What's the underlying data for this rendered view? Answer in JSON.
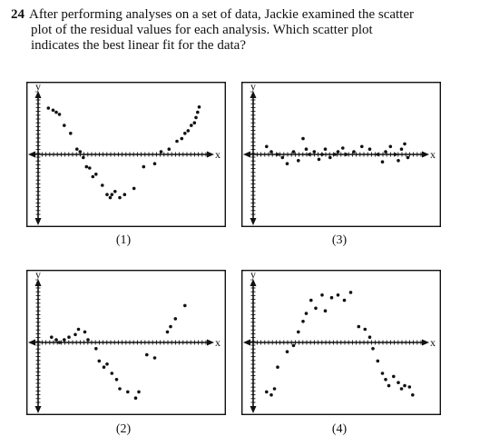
{
  "question": {
    "number": "24",
    "lines": [
      "After performing analyses on a set of data, Jackie examined the scatter",
      "plot of the residual values for each analysis. Which scatter plot",
      "indicates the best linear fit for the data?"
    ]
  },
  "axis_labels": {
    "x": "x",
    "y": "y"
  },
  "chart_data": [
    {
      "type": "scatter",
      "caption": "(1)",
      "x": [
        0.03,
        0.06,
        0.08,
        0.1,
        0.13,
        0.17,
        0.21,
        0.23,
        0.25,
        0.27,
        0.29,
        0.31,
        0.33,
        0.37,
        0.4,
        0.42,
        0.43,
        0.45,
        0.48,
        0.51,
        0.57,
        0.63,
        0.7,
        0.74,
        0.79,
        0.84,
        0.87,
        0.89,
        0.91,
        0.93,
        0.95,
        0.96,
        0.97,
        0.98
      ],
      "y": [
        0.88,
        0.84,
        0.8,
        0.76,
        0.55,
        0.4,
        0.1,
        0.05,
        -0.05,
        -0.2,
        -0.22,
        -0.36,
        -0.32,
        -0.5,
        -0.65,
        -0.7,
        -0.65,
        -0.6,
        -0.7,
        -0.65,
        -0.55,
        -0.2,
        -0.15,
        0.05,
        0.1,
        0.25,
        0.3,
        0.4,
        0.45,
        0.55,
        0.6,
        0.7,
        0.8,
        0.9
      ],
      "xlim": [
        0,
        1
      ],
      "ylim": [
        -1,
        1
      ]
    },
    {
      "type": "scatter",
      "caption": "(3)",
      "x": [
        0.05,
        0.08,
        0.12,
        0.15,
        0.18,
        0.22,
        0.25,
        0.28,
        0.3,
        0.32,
        0.35,
        0.38,
        0.4,
        0.42,
        0.45,
        0.48,
        0.5,
        0.53,
        0.55,
        0.6,
        0.65,
        0.7,
        0.75,
        0.78,
        0.8,
        0.83,
        0.86,
        0.88,
        0.9,
        0.92,
        0.94
      ],
      "y": [
        0.15,
        0.05,
        0.0,
        -0.05,
        -0.15,
        0.05,
        -0.1,
        0.3,
        0.1,
        0.0,
        0.05,
        -0.08,
        0.0,
        0.1,
        -0.05,
        0.0,
        0.05,
        0.12,
        0.0,
        0.05,
        0.15,
        0.1,
        0.0,
        -0.12,
        0.05,
        0.15,
        0.0,
        -0.1,
        0.1,
        0.2,
        -0.05
      ],
      "xlim": [
        0,
        1
      ],
      "ylim": [
        -1,
        1
      ]
    },
    {
      "type": "scatter",
      "caption": "(2)",
      "x": [
        0.05,
        0.08,
        0.1,
        0.13,
        0.16,
        0.2,
        0.22,
        0.26,
        0.28,
        0.33,
        0.35,
        0.38,
        0.4,
        0.43,
        0.46,
        0.48,
        0.53,
        0.58,
        0.6,
        0.65,
        0.7,
        0.78,
        0.8,
        0.83,
        0.89
      ],
      "y": [
        0.1,
        0.05,
        0.0,
        0.05,
        0.1,
        0.15,
        0.25,
        0.2,
        0.05,
        -0.1,
        -0.3,
        -0.4,
        -0.35,
        -0.5,
        -0.6,
        -0.75,
        -0.8,
        -0.9,
        -0.8,
        -0.2,
        -0.25,
        0.2,
        0.3,
        0.45,
        0.7
      ],
      "xlim": [
        0,
        1
      ],
      "ylim": [
        -1,
        1
      ]
    },
    {
      "type": "scatter",
      "caption": "(4)",
      "x": [
        0.05,
        0.08,
        0.1,
        0.12,
        0.18,
        0.22,
        0.25,
        0.28,
        0.3,
        0.33,
        0.36,
        0.4,
        0.42,
        0.46,
        0.5,
        0.54,
        0.58,
        0.63,
        0.67,
        0.7,
        0.72,
        0.75,
        0.78,
        0.8,
        0.82,
        0.85,
        0.88,
        0.9,
        0.92,
        0.95,
        0.97
      ],
      "y": [
        -0.8,
        -0.85,
        -0.75,
        -0.4,
        -0.15,
        -0.05,
        0.2,
        0.4,
        0.55,
        0.8,
        0.65,
        0.9,
        0.6,
        0.85,
        0.9,
        0.8,
        0.95,
        0.3,
        0.25,
        0.1,
        -0.1,
        -0.3,
        -0.5,
        -0.6,
        -0.7,
        -0.55,
        -0.65,
        -0.75,
        -0.7,
        -0.72,
        -0.85
      ],
      "xlim": [
        0,
        1
      ],
      "ylim": [
        -1,
        1
      ]
    }
  ]
}
